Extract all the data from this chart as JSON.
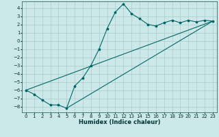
{
  "title": "",
  "xlabel": "Humidex (Indice chaleur)",
  "bg_color": "#cce8e8",
  "grid_color": "#aacccc",
  "line_color": "#006666",
  "series1_x": [
    0,
    1,
    2,
    3,
    4,
    5,
    6,
    7,
    8,
    9,
    10,
    11,
    12,
    13,
    14,
    15,
    16,
    17,
    18,
    19,
    20,
    21,
    22,
    23
  ],
  "series1_y": [
    -6.0,
    -6.5,
    -7.2,
    -7.8,
    -7.8,
    -8.2,
    -5.5,
    -4.5,
    -3.0,
    -1.0,
    1.5,
    3.5,
    4.5,
    3.3,
    2.7,
    2.0,
    1.8,
    2.2,
    2.5,
    2.2,
    2.5,
    2.3,
    2.5,
    2.4
  ],
  "series2_x": [
    0,
    23
  ],
  "series2_y": [
    -6.0,
    2.4
  ],
  "series3_x": [
    5,
    23
  ],
  "series3_y": [
    -8.2,
    2.4
  ],
  "xlim": [
    -0.5,
    23.5
  ],
  "ylim": [
    -8.7,
    4.8
  ],
  "xticks": [
    0,
    1,
    2,
    3,
    4,
    5,
    6,
    7,
    8,
    9,
    10,
    11,
    12,
    13,
    14,
    15,
    16,
    17,
    18,
    19,
    20,
    21,
    22,
    23
  ],
  "yticks": [
    4,
    3,
    2,
    1,
    0,
    -1,
    -2,
    -3,
    -4,
    -5,
    -6,
    -7,
    -8
  ],
  "tick_fontsize": 5,
  "xlabel_fontsize": 6
}
